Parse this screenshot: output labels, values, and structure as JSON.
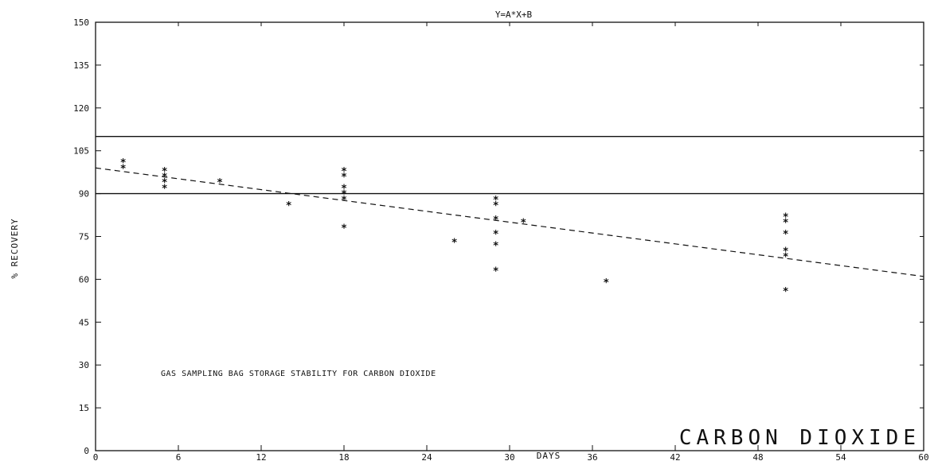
{
  "chart_data": {
    "type": "scatter",
    "title": "Y=A*X+B",
    "xlabel": "DAYS",
    "ylabel": "% RECOVERY",
    "xlim": [
      0,
      60
    ],
    "ylim": [
      0,
      150
    ],
    "x_ticks": [
      "0",
      "6",
      "12",
      "18",
      "24",
      "30",
      "36",
      "42",
      "48",
      "54",
      "60"
    ],
    "y_ticks": [
      "0",
      "15",
      "30",
      "45",
      "60",
      "75",
      "90",
      "105",
      "120",
      "135",
      "150"
    ],
    "annotation": "GAS SAMPLING BAG STORAGE STABILITY FOR CARBON DIOXIDE",
    "compound_label": "CARBON DIOXIDE",
    "reference_lines": [
      110,
      90
    ],
    "fit_line": {
      "x": [
        0,
        60
      ],
      "y": [
        99,
        61
      ]
    },
    "series": [
      {
        "points": [
          {
            "x": 2,
            "y": 101
          },
          {
            "x": 2,
            "y": 99
          },
          {
            "x": 5,
            "y": 98
          },
          {
            "x": 5,
            "y": 96
          },
          {
            "x": 5,
            "y": 94
          },
          {
            "x": 5,
            "y": 92
          },
          {
            "x": 9,
            "y": 94
          },
          {
            "x": 14,
            "y": 86
          },
          {
            "x": 18,
            "y": 98
          },
          {
            "x": 18,
            "y": 96
          },
          {
            "x": 18,
            "y": 92
          },
          {
            "x": 18,
            "y": 90
          },
          {
            "x": 18,
            "y": 88
          },
          {
            "x": 18,
            "y": 78
          },
          {
            "x": 26,
            "y": 73
          },
          {
            "x": 29,
            "y": 88
          },
          {
            "x": 29,
            "y": 86
          },
          {
            "x": 29,
            "y": 81
          },
          {
            "x": 29,
            "y": 76
          },
          {
            "x": 29,
            "y": 72
          },
          {
            "x": 29,
            "y": 63
          },
          {
            "x": 31,
            "y": 80
          },
          {
            "x": 37,
            "y": 59
          },
          {
            "x": 50,
            "y": 82
          },
          {
            "x": 50,
            "y": 80
          },
          {
            "x": 50,
            "y": 76
          },
          {
            "x": 50,
            "y": 70
          },
          {
            "x": 50,
            "y": 68
          },
          {
            "x": 50,
            "y": 56
          }
        ]
      }
    ]
  }
}
